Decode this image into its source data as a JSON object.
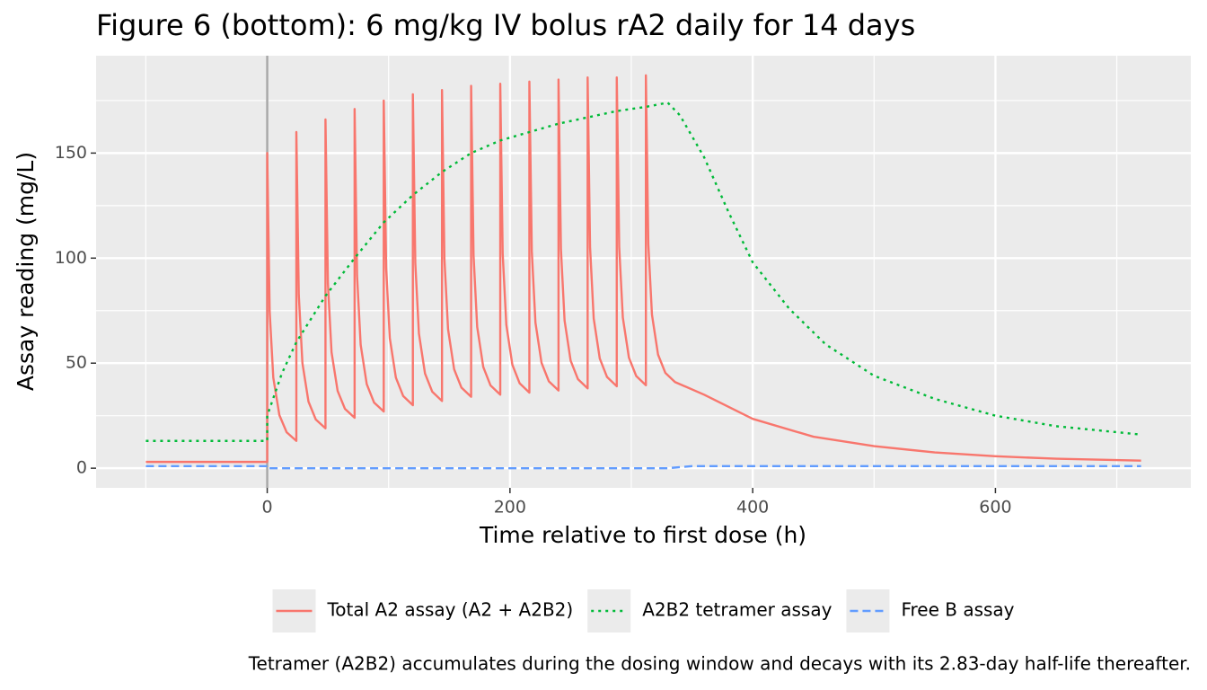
{
  "chart_data": {
    "type": "line",
    "title": "Figure 6 (bottom): 6 mg/kg IV bolus rA2 daily for 14 days",
    "x_label": "Time relative to first dose (h)",
    "y_label": "Assay reading (mg/L)",
    "caption": "Tetramer (A2B2) accumulates during the dosing window and decays with its 2.83-day half-life thereafter.",
    "xlim": [
      -141,
      761
    ],
    "xticks": [
      0,
      200,
      400,
      600
    ],
    "minor_xticks": [
      -100,
      100,
      300,
      500,
      700
    ],
    "ylim": [
      -9.35,
      196.35
    ],
    "yticks": [
      0,
      50,
      100,
      150
    ],
    "minor_yticks": [
      25,
      75,
      125,
      175
    ],
    "grid": true,
    "legend": "bottom",
    "vlines": [
      0
    ],
    "series": [
      {
        "name": "Total A2 assay (A2 + A2B2)",
        "color": "#F8766D",
        "dash": "solid",
        "x": [
          -100,
          0,
          0,
          2,
          5,
          10,
          16,
          24,
          24,
          26,
          29,
          34,
          40,
          48,
          48,
          50,
          53,
          58,
          64,
          72,
          72,
          74,
          77,
          82,
          88,
          96,
          96,
          98,
          101,
          106,
          112,
          120,
          120,
          122,
          125,
          130,
          136,
          144,
          144,
          146,
          149,
          154,
          160,
          168,
          168,
          170,
          173,
          178,
          184,
          192,
          192,
          194,
          197,
          202,
          208,
          216,
          216,
          218,
          221,
          226,
          232,
          240,
          240,
          242,
          245,
          250,
          256,
          264,
          264,
          266,
          269,
          274,
          280,
          288,
          288,
          290,
          293,
          298,
          304,
          312,
          312,
          314,
          317,
          322,
          328,
          336,
          360,
          400,
          450,
          500,
          550,
          600,
          650,
          720
        ],
        "values": [
          3,
          3,
          150,
          74.7,
          43.1,
          25.3,
          17.1,
          13,
          160,
          82.5,
          50,
          31.7,
          23.2,
          19,
          166,
          87.9,
          55.2,
          36.8,
          28.3,
          24,
          171,
          91.8,
          58.7,
          40,
          31.3,
          27,
          175,
          95.3,
          61.9,
          43.1,
          34.4,
          30,
          178,
          97.7,
          64.1,
          45.1,
          36.4,
          32,
          180,
          99.7,
          66.1,
          47.1,
          38.4,
          34,
          182,
          101.2,
          67.3,
          48.2,
          39.4,
          35,
          183,
          102.2,
          68.3,
          49.2,
          40.4,
          36,
          184,
          103.2,
          69.3,
          50.2,
          41.4,
          37,
          185,
          104.2,
          70.3,
          51.2,
          42.4,
          38,
          186,
          105.2,
          71.3,
          52.2,
          43.4,
          39,
          186,
          105.4,
          71.7,
          52.7,
          43.9,
          39.5,
          187,
          106.7,
          73.1,
          54.1,
          45.4,
          41,
          35,
          23.5,
          15,
          10.5,
          7.5,
          5.7,
          4.5,
          3.6
        ]
      },
      {
        "name": "A2B2 tetramer assay",
        "color": "#00BA38",
        "dash": "dotted",
        "x": [
          -100,
          0,
          0,
          12,
          24,
          48,
          72,
          96,
          120,
          144,
          168,
          192,
          216,
          240,
          264,
          288,
          312,
          330,
          340,
          360,
          380,
          400,
          430,
          460,
          500,
          550,
          600,
          650,
          720
        ],
        "values": [
          13,
          13,
          25,
          45,
          60,
          82,
          100,
          117,
          130,
          141,
          150,
          156,
          160,
          164,
          167,
          170,
          172,
          174,
          168,
          148,
          122,
          98,
          76,
          59,
          44,
          33,
          25,
          20,
          16
        ]
      },
      {
        "name": "Free B assay",
        "color": "#619CFF",
        "dash": "dashed",
        "x": [
          -100,
          0,
          0,
          330,
          350,
          720
        ],
        "values": [
          1,
          1,
          0,
          0,
          1,
          1
        ]
      }
    ]
  }
}
